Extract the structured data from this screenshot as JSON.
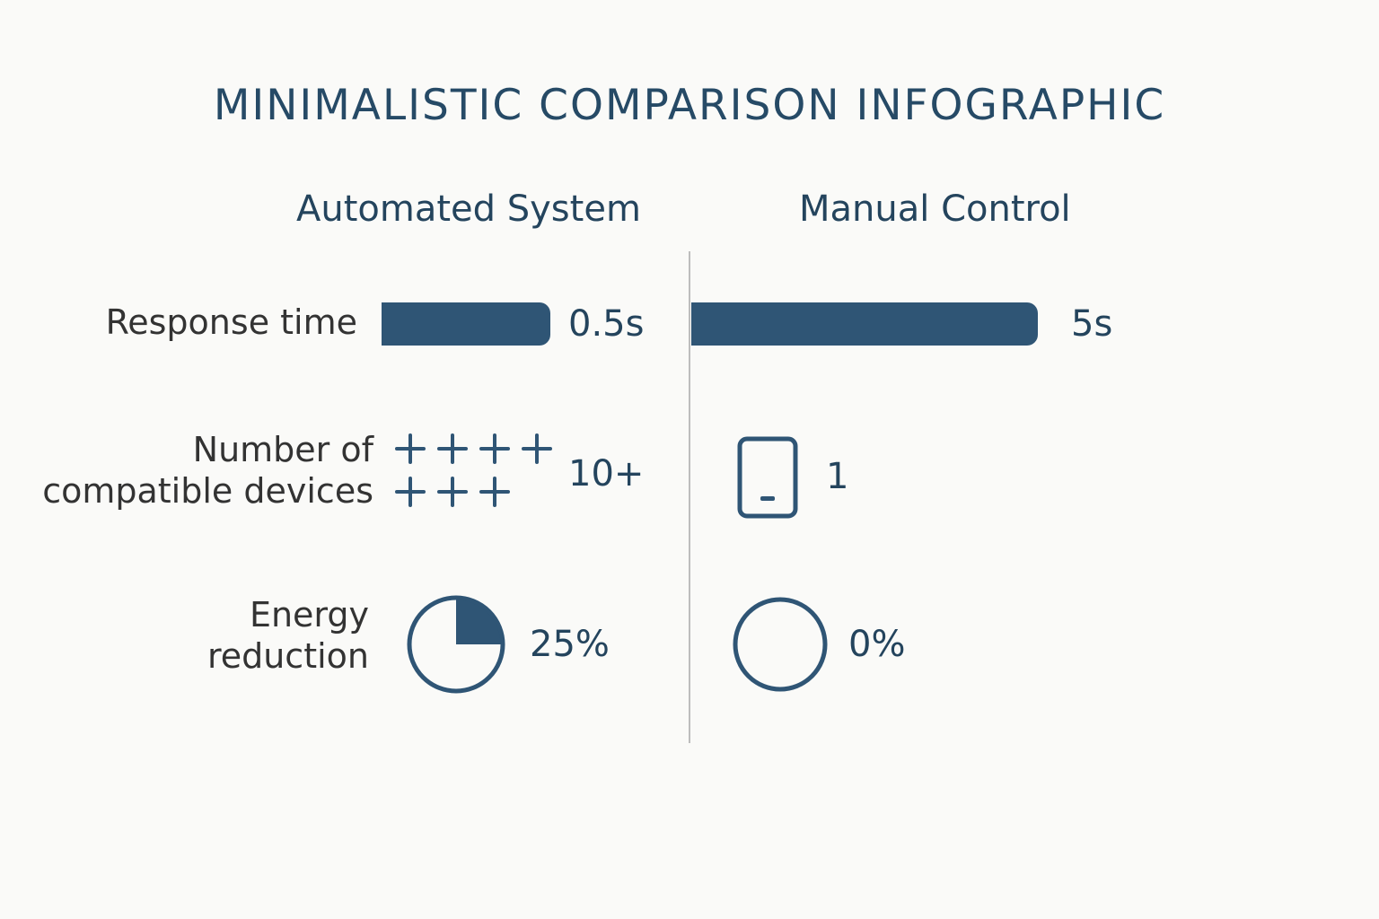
{
  "title": "MINIMALISTIC COMPARISON INFOGRAPHIC",
  "columns": {
    "automated": "Automated System",
    "manual": "Manual Control"
  },
  "colors": {
    "accent": "#2f5575",
    "text_dark": "#24445d",
    "label": "#333333",
    "divider": "#bdbdbd",
    "background": "#fafaf8"
  },
  "rows": {
    "response_time": {
      "label": "Response time",
      "automated": {
        "value": "0.5s",
        "seconds": 0.5
      },
      "manual": {
        "value": "5s",
        "seconds": 5
      }
    },
    "devices": {
      "label_line1": "Number of",
      "label_line2": "compatible devices",
      "automated": {
        "value": "10+",
        "icon": "plus-icon",
        "icon_count": 7
      },
      "manual": {
        "value": "1",
        "icon": "phone-icon",
        "icon_count": 1
      }
    },
    "energy": {
      "label_line1": "Energy",
      "label_line2": "reduction",
      "automated": {
        "value": "25%",
        "fraction": 0.25,
        "icon": "pie-icon"
      },
      "manual": {
        "value": "0%",
        "fraction": 0,
        "icon": "circle-icon"
      }
    }
  }
}
